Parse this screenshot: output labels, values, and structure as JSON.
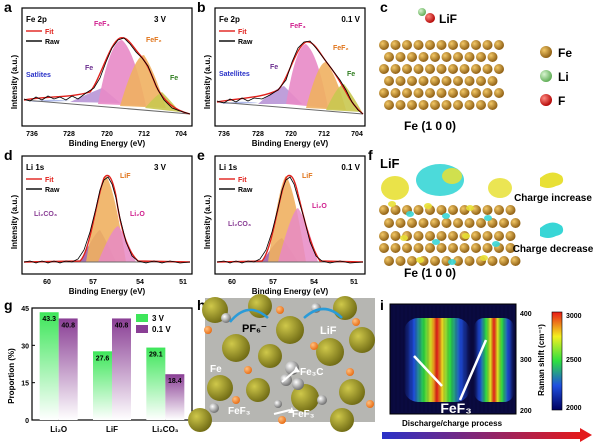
{
  "colors": {
    "fit": "#e0201b",
    "raw": "#000000",
    "fe_atom": "#b07a1c",
    "li_atom": "#7cc576",
    "f_atom": "#e31a1c",
    "charge_increase": "#e8e035",
    "charge_decrease": "#38d6d6",
    "bar_3v": "#3ee65a",
    "bar_01v": "#8a3f95"
  },
  "panels": {
    "a": {
      "letter": "a",
      "element": "Fe 2p",
      "voltage": "3 V",
      "legend_fit": "Fit",
      "legend_raw": "Raw",
      "ylabel": "Intensity (a.u.)",
      "xlabel": "Binding Energy (eV)",
      "xticks": [
        "736",
        "728",
        "720",
        "712",
        "704"
      ],
      "peaks": {
        "satellites": "Satlites",
        "fe_metal": "Fe",
        "fef3": "FeF₃",
        "fef2": "FeF₂",
        "fe_low": "Fe"
      }
    },
    "b": {
      "letter": "b",
      "element": "Fe 2p",
      "voltage": "0.1 V",
      "legend_fit": "Fit",
      "legend_raw": "Raw",
      "ylabel": "Intensity (a.u.)",
      "xlabel": "Binding Energy (eV)",
      "xticks": [
        "736",
        "728",
        "720",
        "712",
        "704"
      ],
      "peaks": {
        "satellites": "Satellites",
        "fe_metal": "Fe",
        "fef3": "FeF₃",
        "fef2": "FeF₂",
        "fe_low": "Fe"
      }
    },
    "c": {
      "letter": "c",
      "molecule": "LiF",
      "surface": "Fe (1 0 0)",
      "legend": [
        "Fe",
        "Li",
        "F"
      ]
    },
    "d": {
      "letter": "d",
      "element": "Li 1s",
      "voltage": "3 V",
      "legend_fit": "Fit",
      "legend_raw": "Raw",
      "ylabel": "Intensity (a.u.)",
      "xlabel": "Binding Energy (eV)",
      "xticks": [
        "60",
        "57",
        "54",
        "51"
      ],
      "peaks": {
        "lif": "LiF",
        "li2co3": "Li₂CO₃",
        "li2o": "Li₂O"
      }
    },
    "e": {
      "letter": "e",
      "element": "Li 1s",
      "voltage": "0.1 V",
      "legend_fit": "Fit",
      "legend_raw": "Raw",
      "ylabel": "Intensity (a.u.)",
      "xlabel": "Binding Energy (eV)",
      "xticks": [
        "60",
        "57",
        "54",
        "51"
      ],
      "peaks": {
        "lif": "LiF",
        "li2co3": "Li₂CO₃",
        "li2o": "Li₂O"
      }
    },
    "f": {
      "letter": "f",
      "molecule": "LiF",
      "surface": "Fe (1 0 0)",
      "legend_increase": "Charge increase",
      "legend_decrease": "Charge decrease"
    },
    "h": {
      "letter": "h",
      "labels": {
        "pf6": "PF₆⁻",
        "lif": "LiF",
        "fe": "Fe",
        "fe3c": "Fe₃C",
        "fef3_left": "FeF₃",
        "fef3_right": "FeF₃"
      }
    },
    "i": {
      "letter": "i",
      "annotation": "FeF₃",
      "colorbar_label": "Raman shift (cm⁻¹)",
      "colorbar_ticks": [
        "3000",
        "2500",
        "2000"
      ],
      "yticks": [
        "400",
        "300",
        "200"
      ],
      "xlabel": "Discharge/charge process"
    }
  },
  "chart_data": {
    "type": "bar",
    "panel": "g",
    "ylabel": "Proportion (%)",
    "categories": [
      "Li₂O",
      "LiF",
      "Li₂CO₃"
    ],
    "series": [
      {
        "name": "3 V",
        "values": [
          43.3,
          27.6,
          29.1
        ]
      },
      {
        "name": "0.1 V",
        "values": [
          40.8,
          40.8,
          18.4
        ]
      }
    ],
    "ylim": [
      0,
      45
    ],
    "yticks": [
      0,
      15,
      30,
      45
    ],
    "value_labels": [
      [
        "43.3",
        "27.6",
        "29.1"
      ],
      [
        "40.8",
        "40.8",
        "18.4"
      ]
    ],
    "legend": "top-right",
    "grid": false
  }
}
